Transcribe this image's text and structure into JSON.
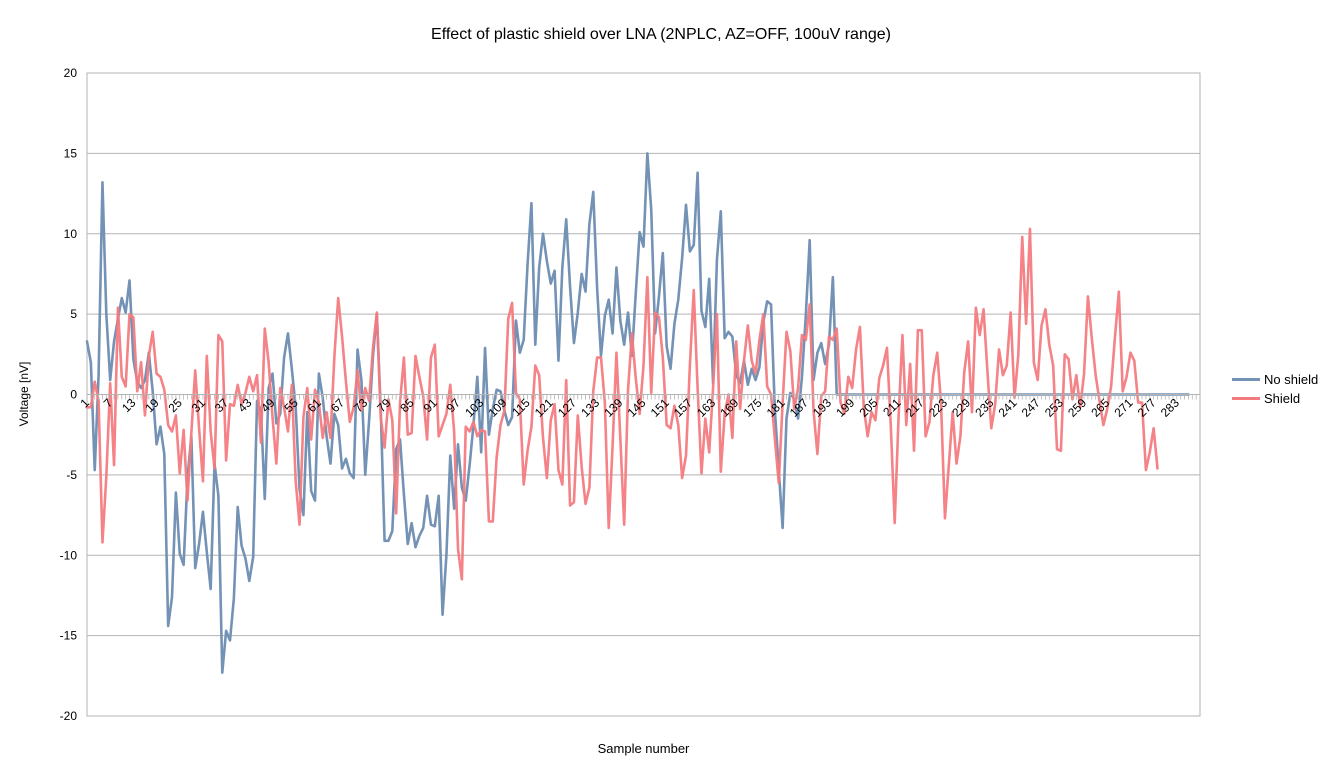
{
  "chart_data": {
    "type": "line",
    "title": "Effect of plastic shield over LNA (2NPLC, AZ=OFF, 100uV range)",
    "xlabel": "Sample number",
    "ylabel": "Voltage [nV]",
    "ylim": [
      -20,
      20
    ],
    "yticks": [
      20,
      15,
      10,
      5,
      0,
      -5,
      -10,
      -15,
      -20
    ],
    "xlim": [
      1,
      289
    ],
    "xticks": [
      1,
      7,
      13,
      19,
      25,
      31,
      37,
      43,
      49,
      55,
      61,
      67,
      73,
      79,
      85,
      91,
      97,
      103,
      109,
      115,
      121,
      127,
      133,
      139,
      145,
      151,
      157,
      163,
      169,
      175,
      181,
      187,
      193,
      199,
      205,
      211,
      217,
      223,
      229,
      235,
      241,
      247,
      253,
      259,
      265,
      271,
      277,
      283
    ],
    "grid": true,
    "legend_position": "right",
    "series": [
      {
        "name": "No shield",
        "color": "#7392b5",
        "values": [
          3.3,
          2.0,
          -4.7,
          1.2,
          13.2,
          5.0,
          0.9,
          3.3,
          4.7,
          6.0,
          5.1,
          7.1,
          2.2,
          0.8,
          0.4,
          0.9,
          2.6,
          0.2,
          -3.1,
          -2.0,
          -3.7,
          -14.4,
          -12.6,
          -6.1,
          -9.9,
          -10.6,
          -5.2,
          -2.6,
          -10.8,
          -9.3,
          -7.3,
          -9.8,
          -12.1,
          -4.3,
          -6.3,
          -17.3,
          -14.7,
          -15.3,
          -12.7,
          -7.0,
          -9.4,
          -10.2,
          -11.6,
          -10.1,
          -0.4,
          -1.0,
          -6.5,
          0.4,
          1.3,
          -1.8,
          -1.2,
          2.3,
          3.8,
          1.6,
          -0.8,
          -5.9,
          -7.5,
          -1.1,
          -6.0,
          -6.6,
          1.3,
          -0.2,
          -2.6,
          -4.3,
          -1.2,
          -1.9,
          -4.6,
          -4.0,
          -4.9,
          -5.2,
          2.8,
          0.9,
          -5.0,
          -1.6,
          2.4,
          5.0,
          -0.9,
          -9.1,
          -9.1,
          -8.5,
          -3.4,
          -2.8,
          -6.2,
          -9.3,
          -8.0,
          -9.5,
          -8.8,
          -8.3,
          -6.3,
          -8.1,
          -8.2,
          -6.3,
          -13.7,
          -10.0,
          -3.8,
          -7.1,
          -3.1,
          -5.8,
          -6.6,
          -4.4,
          -1.9,
          1.1,
          -3.6,
          2.9,
          -2.5,
          -0.9,
          0.3,
          0.2,
          -1.0,
          -1.9,
          -1.4,
          4.6,
          2.6,
          3.4,
          8.1,
          11.9,
          3.1,
          7.9,
          10.0,
          8.3,
          6.9,
          7.7,
          2.1,
          7.9,
          10.9,
          6.7,
          3.2,
          5.1,
          7.5,
          6.4,
          10.6,
          12.6,
          6.6,
          2.4,
          4.9,
          5.9,
          3.8,
          7.9,
          4.6,
          3.1,
          5.1,
          2.4,
          6.3,
          10.1,
          9.2,
          15.0,
          11.5,
          3.8,
          6.1,
          8.8,
          3.0,
          1.6,
          4.4,
          5.9,
          8.5,
          11.8,
          8.9,
          9.3,
          13.8,
          5.2,
          4.2,
          7.2,
          0.7,
          8.4,
          11.4,
          3.5,
          3.9,
          3.6,
          1.2,
          0.7,
          2.1,
          0.6,
          1.6,
          0.9,
          1.7,
          4.5,
          5.8,
          5.6,
          -1.0,
          -4.7,
          -8.3,
          -1.5,
          0.1,
          -0.3,
          -1.5,
          1.1,
          4.9,
          9.6,
          0.9,
          2.6,
          3.2,
          1.9,
          3.1,
          7.3,
          0.0,
          0.0,
          0.0,
          0.0,
          0.0,
          0.0,
          0.0,
          0.0,
          0.0,
          0.0,
          0.0,
          0.0,
          0.0,
          0.0,
          0.0,
          0.0,
          0.0,
          0.0,
          0.0,
          0.0,
          0.0,
          0.0,
          0.0,
          0.0,
          0.0,
          0.0,
          0.0,
          0.0,
          0.0,
          0.0,
          0.0,
          0.0,
          0.0,
          0.0,
          0.0,
          0.0,
          0.0,
          0.0,
          0.0,
          0.0,
          0.0,
          0.0,
          0.0,
          0.0,
          0.0,
          0.0,
          0.0,
          0.0,
          0.0,
          0.0,
          0.0,
          0.0,
          0.0,
          0.0,
          0.0,
          0.0,
          0.0,
          0.0,
          0.0,
          0.0,
          0.0,
          0.0,
          0.0,
          0.0,
          0.0,
          0.0,
          0.0,
          0.0,
          0.0,
          0.0,
          0.0,
          0.0,
          0.0,
          0.0,
          0.0,
          0.0,
          0.0,
          0.0,
          0.0,
          0.0,
          0.0,
          0.0,
          0.0,
          0.0,
          0.0,
          0.0,
          0.0,
          0.0,
          0.0,
          0.0,
          0.0,
          0.0
        ]
      },
      {
        "name": "Shield",
        "color": "#f37b80",
        "values": [
          -0.8,
          -0.8,
          0.8,
          -0.4,
          -9.2,
          -5.1,
          0.7,
          -4.4,
          5.4,
          1.1,
          0.5,
          5.0,
          4.8,
          0.2,
          2.0,
          -1.3,
          2.4,
          3.9,
          1.3,
          1.1,
          0.3,
          -1.9,
          -2.3,
          -1.3,
          -4.9,
          -2.2,
          -6.6,
          -2.4,
          1.5,
          -2.1,
          -5.4,
          2.4,
          -2.3,
          -4.6,
          3.7,
          3.3,
          -4.1,
          -0.6,
          -0.7,
          0.6,
          -0.6,
          0.1,
          1.1,
          0.2,
          1.2,
          -3.0,
          4.1,
          2.0,
          -1.4,
          -4.3,
          0.4,
          -0.8,
          -2.3,
          0.6,
          -5.4,
          -8.1,
          -1.4,
          0.4,
          -2.8,
          0.3,
          -0.5,
          -2.7,
          -1.1,
          -2.7,
          2.3,
          6.0,
          3.6,
          0.8,
          -1.7,
          -0.8,
          1.5,
          -1.0,
          0.4,
          -0.4,
          2.9,
          5.1,
          -1.4,
          -3.3,
          -0.3,
          -1.6,
          -7.4,
          -0.5,
          2.3,
          -2.5,
          -2.4,
          2.4,
          1.1,
          -0.1,
          -2.8,
          2.3,
          3.1,
          -2.6,
          -1.9,
          -1.2,
          0.6,
          -2.3,
          -9.6,
          -11.5,
          -2.0,
          -2.3,
          -1.7,
          -2.6,
          -2.2,
          -2.3,
          -7.9,
          -7.9,
          -3.9,
          -1.9,
          -1.0,
          4.7,
          5.7,
          0.1,
          -0.3,
          -5.6,
          -3.5,
          -2.0,
          1.8,
          1.2,
          -2.7,
          -5.2,
          -1.6,
          -0.6,
          -4.7,
          -5.6,
          0.9,
          -6.9,
          -6.7,
          -1.3,
          -4.5,
          -6.8,
          -5.8,
          0.2,
          2.3,
          2.3,
          -0.5,
          -8.3,
          -3.2,
          2.6,
          -2.7,
          -8.1,
          0.3,
          3.8,
          1.0,
          -1.2,
          1.8,
          7.3,
          0.1,
          5.1,
          4.8,
          2.3,
          -1.9,
          -2.1,
          -0.7,
          -1.9,
          -5.2,
          -3.8,
          1.8,
          6.5,
          0.4,
          -4.9,
          -1.5,
          -3.6,
          0.4,
          5.0,
          -4.8,
          -1.2,
          0.0,
          -2.7,
          3.3,
          -0.9,
          2.1,
          4.3,
          2.1,
          1.3,
          3.4,
          5.0,
          0.5,
          0.0,
          -2.8,
          -5.5,
          -0.5,
          3.9,
          2.7,
          -0.9,
          0.4,
          3.7,
          3.4,
          5.6,
          -1.0,
          -3.7,
          -0.1,
          0.2,
          3.6,
          3.4,
          4.1,
          -0.5,
          -1.2,
          1.1,
          0.4,
          2.8,
          4.2,
          -0.8,
          -2.6,
          -1.1,
          -1.6,
          1.0,
          1.8,
          2.9,
          -2.0,
          -8.0,
          -1.4,
          3.7,
          -1.9,
          1.9,
          -3.5,
          4.0,
          4.0,
          -2.6,
          -1.7,
          1.2,
          2.6,
          -0.6,
          -7.7,
          -4.4,
          -1.1,
          -4.3,
          -2.6,
          1.4,
          3.3,
          -1.1,
          5.4,
          3.7,
          5.3,
          1.4,
          -2.1,
          -0.6,
          2.8,
          1.2,
          1.8,
          5.1,
          -0.2,
          2.5,
          9.8,
          4.4,
          10.3,
          2.0,
          0.9,
          4.3,
          5.3,
          3.1,
          1.8,
          -3.4,
          -3.5,
          2.5,
          2.2,
          -0.3,
          1.2,
          -0.8,
          1.3,
          6.1,
          3.5,
          1.2,
          -0.4,
          -1.9,
          -0.9,
          0.5,
          3.6,
          6.4,
          0.2,
          1.1,
          2.6,
          2.1,
          -0.5,
          -0.5,
          -4.7,
          -3.6,
          -2.1,
          -4.6
        ]
      }
    ]
  }
}
